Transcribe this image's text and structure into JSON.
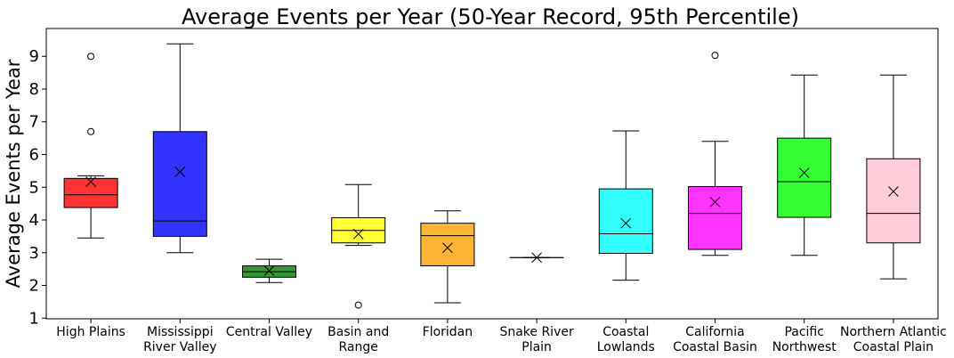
{
  "chart_data": {
    "type": "box",
    "title": "Average Events per Year (50-Year Record, 95th Percentile)",
    "xlabel": "",
    "ylabel": "Average Events per Year",
    "ylim": [
      0.98,
      9.85
    ],
    "yticks": [
      1,
      2,
      3,
      4,
      5,
      6,
      7,
      8,
      9
    ],
    "grid": false,
    "mean_marker": "x",
    "categories": [
      [
        "High Plains"
      ],
      [
        "Mississippi",
        "River Valley"
      ],
      [
        "Central Valley"
      ],
      [
        "Basin and",
        "Range"
      ],
      [
        "Floridan"
      ],
      [
        "Snake River",
        "Plain"
      ],
      [
        "Coastal",
        "Lowlands"
      ],
      [
        "California",
        "Coastal Basin"
      ],
      [
        "Pacific",
        "Northwest"
      ],
      [
        "Northern Atlantic",
        "Coastal Plain"
      ]
    ],
    "boxes": [
      {
        "color": "#ff3333",
        "whislo": 3.45,
        "q1": 4.38,
        "med": 4.77,
        "q3": 5.27,
        "whishi": 5.35,
        "mean": 5.17,
        "fliers": [
          6.7,
          9.0
        ]
      },
      {
        "color": "#3333ff",
        "whislo": 3.0,
        "q1": 3.5,
        "med": 3.97,
        "q3": 6.7,
        "whishi": 9.38,
        "mean": 5.47,
        "fliers": []
      },
      {
        "color": "#339933",
        "whislo": 2.09,
        "q1": 2.25,
        "med": 2.42,
        "q3": 2.6,
        "whishi": 2.8,
        "mean": 2.45,
        "fliers": []
      },
      {
        "color": "#ffff33",
        "whislo": 3.22,
        "q1": 3.3,
        "med": 3.68,
        "q3": 4.07,
        "whishi": 5.08,
        "mean": 3.57,
        "fliers": [
          1.4
        ]
      },
      {
        "color": "#ffb333",
        "whislo": 1.47,
        "q1": 2.6,
        "med": 3.52,
        "q3": 3.9,
        "whishi": 4.28,
        "mean": 3.15,
        "fliers": []
      },
      {
        "color": "#ffffff",
        "whislo": 2.85,
        "q1": 2.85,
        "med": 2.85,
        "q3": 2.85,
        "whishi": 2.85,
        "mean": 2.85,
        "fliers": []
      },
      {
        "color": "#33ffff",
        "whislo": 2.16,
        "q1": 2.98,
        "med": 3.58,
        "q3": 4.95,
        "whishi": 6.72,
        "mean": 3.9,
        "fliers": []
      },
      {
        "color": "#ff33ff",
        "whislo": 2.92,
        "q1": 3.1,
        "med": 4.2,
        "q3": 5.02,
        "whishi": 6.4,
        "mean": 4.55,
        "fliers": [
          9.03
        ]
      },
      {
        "color": "#33ff33",
        "whislo": 2.92,
        "q1": 4.08,
        "med": 5.17,
        "q3": 6.5,
        "whishi": 8.43,
        "mean": 5.44,
        "fliers": []
      },
      {
        "color": "#ffccd9",
        "whislo": 2.2,
        "q1": 3.3,
        "med": 4.2,
        "q3": 5.87,
        "whishi": 8.43,
        "mean": 4.87,
        "fliers": []
      }
    ]
  }
}
